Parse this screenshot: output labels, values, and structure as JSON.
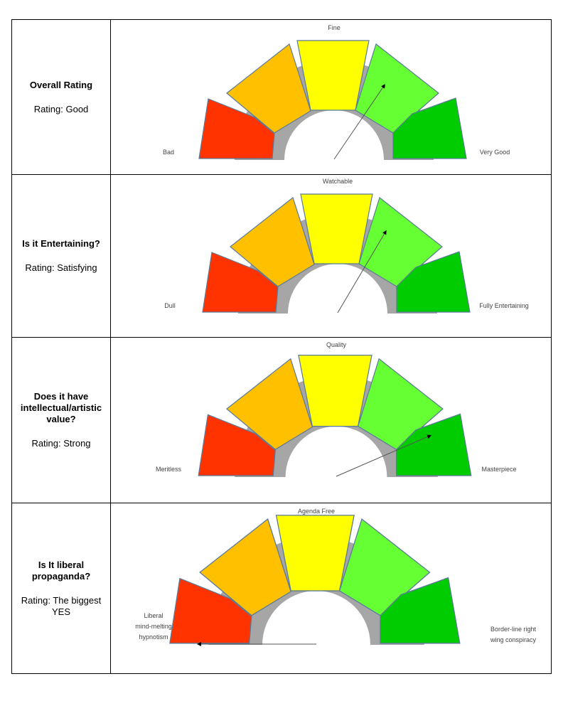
{
  "colors": {
    "red": "#ff3300",
    "orange": "#ffc000",
    "yellow": "#ffff00",
    "light_green": "#66ff33",
    "dark_green": "#00cc00",
    "arc": "#a6a6a6",
    "needle": "#555555"
  },
  "rows": [
    {
      "question": "Overall Rating",
      "rating": "Rating: Good",
      "top_label": "Fine",
      "left_label": [
        "Bad"
      ],
      "right_label": [
        "Very Good"
      ],
      "needle_value": 0.69
    },
    {
      "question": "Is it Entertaining?",
      "rating": "Rating: Satisfying",
      "top_label": "Watchable",
      "left_label": [
        "Dull"
      ],
      "right_label": [
        "Fully Entertaining"
      ],
      "needle_value": 0.67
    },
    {
      "question": "Does it have intellectual/artistic value?",
      "rating": "Rating: Strong",
      "top_label": "Quality",
      "left_label": [
        "Meritless"
      ],
      "right_label": [
        "Masterpiece"
      ],
      "needle_value": 0.87
    },
    {
      "question": "Is It liberal propaganda?",
      "rating": "Rating: The biggest YES",
      "top_label": "Agenda Free",
      "left_label": [
        "Liberal",
        "mind-melting",
        "hypnotism"
      ],
      "right_label": [
        "Border-line right",
        "wing conspiracy"
      ],
      "needle_value": 0.0
    }
  ]
}
